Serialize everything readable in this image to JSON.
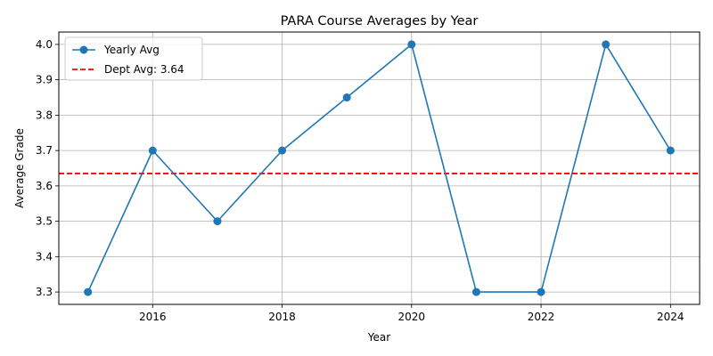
{
  "chart_data": {
    "type": "line",
    "title": "PARA Course Averages by Year",
    "xlabel": "Year",
    "ylabel": "Average Grade",
    "x": [
      2015,
      2016,
      2017,
      2018,
      2019,
      2020,
      2021,
      2022,
      2023,
      2024
    ],
    "series": [
      {
        "name": "Yearly Avg",
        "values": [
          3.3,
          3.7,
          3.5,
          3.7,
          3.85,
          4.0,
          3.3,
          3.3,
          4.0,
          3.7
        ],
        "color": "#1f77b4",
        "marker": "circle"
      }
    ],
    "reference_line": {
      "name": "Dept Avg: 3.64",
      "value": 3.635,
      "color": "#ff0000",
      "style": "dashed"
    },
    "xlim": [
      2014.55,
      2024.45
    ],
    "ylim": [
      3.265,
      4.035
    ],
    "xticks": [
      2016,
      2018,
      2020,
      2022,
      2024
    ],
    "yticks": [
      3.3,
      3.4,
      3.5,
      3.6,
      3.7,
      3.8,
      3.9,
      4.0
    ],
    "ytick_labels": [
      "3.3",
      "3.4",
      "3.5",
      "3.6",
      "3.7",
      "3.8",
      "3.9",
      "4.0"
    ],
    "grid": true,
    "legend_position": "upper-left"
  }
}
